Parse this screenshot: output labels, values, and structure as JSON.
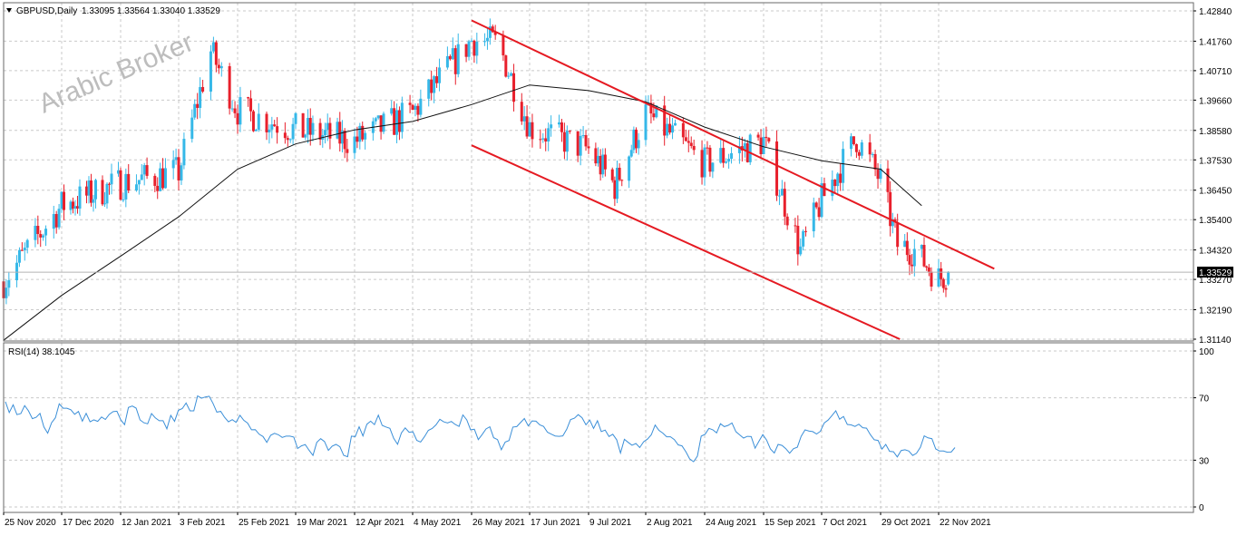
{
  "header": {
    "symbol_label": "GBPUSD,Daily",
    "ohlc": "1.33095 1.33564 1.33040 1.33529"
  },
  "watermark": "Arabic Broker",
  "colors": {
    "up": "#36b8e8",
    "down": "#e8202c",
    "channel": "#e51a22",
    "ma": "#111111",
    "rsi": "#3b8fd8",
    "grid": "#c9c9c9",
    "frame": "#6a6a6a"
  },
  "chart_data": [
    {
      "type": "candlestick",
      "symbol": "GBPUSD",
      "timeframe": "Daily",
      "title": "GBPUSD,Daily",
      "last": {
        "open": 1.33095,
        "high": 1.33564,
        "low": 1.3304,
        "close": 1.33529
      },
      "last_price_tag": "1.33529",
      "ylim": [
        1.3114,
        1.4284
      ],
      "yticks": [
        "1.42840",
        "1.41760",
        "1.40710",
        "1.39660",
        "1.38580",
        "1.37530",
        "1.36450",
        "1.35400",
        "1.34320",
        "1.33270",
        "1.32190",
        "1.31140"
      ],
      "xticks": [
        "25 Nov 2020",
        "17 Dec 2020",
        "12 Jan 2021",
        "3 Feb 2021",
        "25 Feb 2021",
        "19 Mar 2021",
        "12 Apr 2021",
        "4 May 2021",
        "26 May 2021",
        "17 Jun 2021",
        "9 Jul 2021",
        "2 Aug 2021",
        "24 Aug 2021",
        "15 Sep 2021",
        "7 Oct 2021",
        "29 Oct 2021",
        "22 Nov 2021"
      ],
      "close_path": [
        [
          "25 Nov 2020",
          1.332
        ],
        [
          "17 Dec 2020",
          1.359
        ],
        [
          "12 Jan 2021",
          1.367
        ],
        [
          "3 Feb 2021",
          1.371
        ],
        [
          "15 Feb 2021",
          1.414
        ],
        [
          "25 Feb 2021",
          1.393
        ],
        [
          "19 Mar 2021",
          1.386
        ],
        [
          "12 Apr 2021",
          1.382
        ],
        [
          "4 May 2021",
          1.392
        ],
        [
          "26 May 2021",
          1.418
        ],
        [
          "5 Jun 2021",
          1.417
        ],
        [
          "17 Jun 2021",
          1.387
        ],
        [
          "9 Jul 2021",
          1.379
        ],
        [
          "20 Jul 2021",
          1.366
        ],
        [
          "2 Aug 2021",
          1.392
        ],
        [
          "24 Aug 2021",
          1.374
        ],
        [
          "15 Sep 2021",
          1.382
        ],
        [
          "29 Sep 2021",
          1.343
        ],
        [
          "7 Oct 2021",
          1.361
        ],
        [
          "20 Oct 2021",
          1.383
        ],
        [
          "29 Oct 2021",
          1.368
        ],
        [
          "5 Nov 2021",
          1.345
        ],
        [
          "12 Nov 2021",
          1.343
        ],
        [
          "22 Nov 2021",
          1.333
        ],
        [
          "26 Nov 2021",
          1.335
        ]
      ],
      "moving_average_path": [
        [
          "25 Nov 2020",
          1.311
        ],
        [
          "17 Dec 2020",
          1.327
        ],
        [
          "12 Jan 2021",
          1.341
        ],
        [
          "3 Feb 2021",
          1.355
        ],
        [
          "25 Feb 2021",
          1.372
        ],
        [
          "19 Mar 2021",
          1.381
        ],
        [
          "12 Apr 2021",
          1.386
        ],
        [
          "4 May 2021",
          1.389
        ],
        [
          "26 May 2021",
          1.395
        ],
        [
          "17 Jun 2021",
          1.402
        ],
        [
          "9 Jul 2021",
          1.4
        ],
        [
          "2 Aug 2021",
          1.396
        ],
        [
          "24 Aug 2021",
          1.387
        ],
        [
          "15 Sep 2021",
          1.38
        ],
        [
          "7 Oct 2021",
          1.375
        ],
        [
          "29 Oct 2021",
          1.372
        ],
        [
          "15 Nov 2021",
          1.359
        ]
      ],
      "channel_upper": [
        [
          "26 May 2021",
          1.425
        ],
        [
          "Dec 2021",
          1.3365
        ]
      ],
      "channel_lower": [
        [
          "26 May 2021",
          1.3805
        ],
        [
          "6 Nov 2021",
          1.3114
        ]
      ],
      "grid": true
    },
    {
      "type": "line",
      "title": "RSI(14) 38.1045",
      "series": [
        {
          "name": "RSI(14)",
          "last": 38.1045
        }
      ],
      "ylim": [
        0,
        100
      ],
      "yticks": [
        "100",
        "70",
        "30",
        "0"
      ],
      "values": [
        67.5,
        60.5,
        65.5,
        59.2,
        59.9,
        65.0,
        61.6,
        56.6,
        57.5,
        60.0,
        51.3,
        47.3,
        54.0,
        57.2,
        66.1,
        63.3,
        63.3,
        62.3,
        59.4,
        61.2,
        55.0,
        60.0,
        54.6,
        55.9,
        54.9,
        57.7,
        56.1,
        59.3,
        61.1,
        61.4,
        55.8,
        52.8,
        63.8,
        64.7,
        63.4,
        55.8,
        54.0,
        53.3,
        59.9,
        57.1,
        55.3,
        55.3,
        50.1,
        58.7,
        54.9,
        62.0,
        63.1,
        66.6,
        61.6,
        61.6,
        71.2,
        69.7,
        70.5,
        71.0,
        66.4,
        60.8,
        61.3,
        57.5,
        54.6,
        56.0,
        54.3,
        58.8,
        55.6,
        53.8,
        49.5,
        49.6,
        46.6,
        45.2,
        41.4,
        46.0,
        47.2,
        46.3,
        44.6,
        45.4,
        45.4,
        44.8,
        37.5,
        39.2,
        40.0,
        36.3,
        33.0,
        41.4,
        43.8,
        42.0,
        36.3,
        39.0,
        40.1,
        38.6,
        33.1,
        32.2,
        45.4,
        45.1,
        51.4,
        45.5,
        53.0,
        55.0,
        52.8,
        58.9,
        52.3,
        51.3,
        50.4,
        44.0,
        40.2,
        47.5,
        50.7,
        47.9,
        48.2,
        42.7,
        41.6,
        45.0,
        49.1,
        50.3,
        52.7,
        56.2,
        54.6,
        53.9,
        54.8,
        52.9,
        51.6,
        59.0,
        55.8,
        49.5,
        49.8,
        43.2,
        46.4,
        50.0,
        51.4,
        44.4,
        43.2,
        36.7,
        41.6,
        42.6,
        51.2,
        51.5,
        54.1,
        56.7,
        52.0,
        55.2,
        55.0,
        52.6,
        51.6,
        47.9,
        46.7,
        45.5,
        45.3,
        45.6,
        49.8,
        56.0,
        56.9,
        59.2,
        57.2,
        52.7,
        55.7,
        50.4,
        55.3,
        48.3,
        49.3,
        45.2,
        46.6,
        43.1,
        34.6,
        43.4,
        41.4,
        39.6,
        40.7,
        38.1,
        41.8,
        43.5,
        46.2,
        52.5,
        49.1,
        47.4,
        45.0,
        45.0,
        43.2,
        39.8,
        39.2,
        35.4,
        30.8,
        29.0,
        32.6,
        45.4,
        46.6,
        50.4,
        49.5,
        47.5,
        53.4,
        51.5,
        52.3,
        53.9,
        48.3,
        46.2,
        44.2,
        45.3,
        45.1,
        37.7,
        42.1,
        46.4,
        42.9,
        37.2,
        34.6,
        40.1,
        39.5,
        37.4,
        34.5,
        37.4,
        38.3,
        45.3,
        49.4,
        48.7,
        48.3,
        46.8,
        48.5,
        53.9,
        55.7,
        58.6,
        61.7,
        56.3,
        58.0,
        52.9,
        52.6,
        51.6,
        53.1,
        50.8,
        50.5,
        46.4,
        43.1,
        42.7,
        37.1,
        40.1,
        35.7,
        35.4,
        32.1,
        36.2,
        36.7,
        35.9,
        33.0,
        34.4,
        38.3,
        45.6,
        44.3,
        43.8,
        37.2,
        35.9,
        35.9,
        35.1,
        35.2,
        38.1
      ]
    }
  ]
}
